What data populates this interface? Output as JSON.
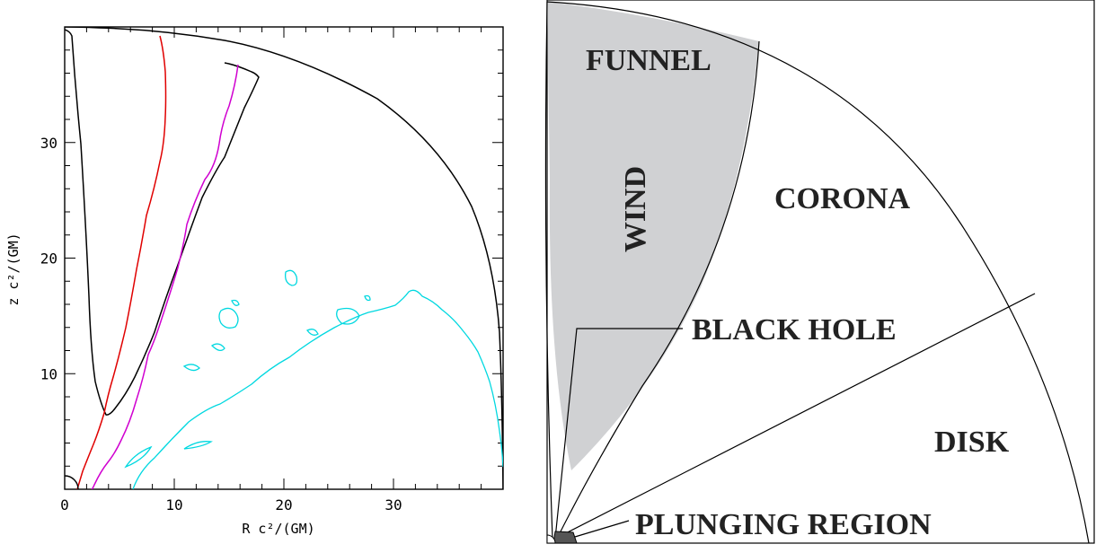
{
  "left_plot": {
    "xlabel": "R c²/(GM)",
    "ylabel": "z c²/(GM)",
    "x_ticks": [
      "0",
      "10",
      "20",
      "30"
    ],
    "y_ticks": [
      "10",
      "20",
      "30"
    ],
    "xlim": [
      0,
      40
    ],
    "ylim": [
      0,
      40
    ],
    "colors": {
      "frame": "#000000",
      "black_contour": "#000000",
      "red_contour": "#e00000",
      "magenta_contour": "#d000d0",
      "cyan_contour": "#00d8e0"
    }
  },
  "schematic": {
    "labels": {
      "funnel": "FUNNEL",
      "wind": "WIND",
      "corona": "CORONA",
      "black_hole": "BLACK HOLE",
      "disk": "DISK",
      "plunging_region": "PLUNGING REGION"
    },
    "colors": {
      "wind_fill": "#d0d1d3",
      "outline": "#000000",
      "plunging_fill": "#555555"
    }
  }
}
